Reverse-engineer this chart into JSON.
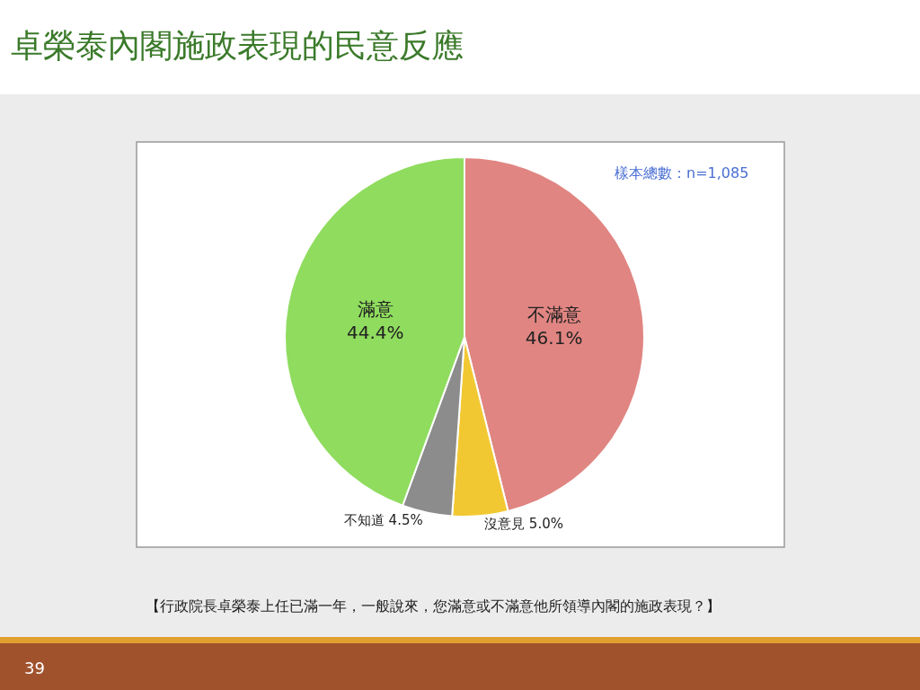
{
  "chart_data": {
    "type": "pie",
    "title": "卓榮泰內閣施政表現的民意反應",
    "categories": [
      "不滿意",
      "沒意見",
      "不知道",
      "滿意"
    ],
    "values": [
      46.1,
      5.0,
      4.5,
      44.4
    ],
    "value_labels": [
      "46.1%",
      "5.0%",
      "4.5%",
      "44.4%"
    ],
    "colors": [
      "#e08582",
      "#f2c832",
      "#8c8c8c",
      "#8fdc5e"
    ],
    "legend": false,
    "annotations": [
      "樣本總數：n=1,085",
      "【行政院長卓榮泰上任已滿一年，一般說來，您滿意或不滿意他所領導內閣的施政表現？】",
      "39"
    ]
  }
}
